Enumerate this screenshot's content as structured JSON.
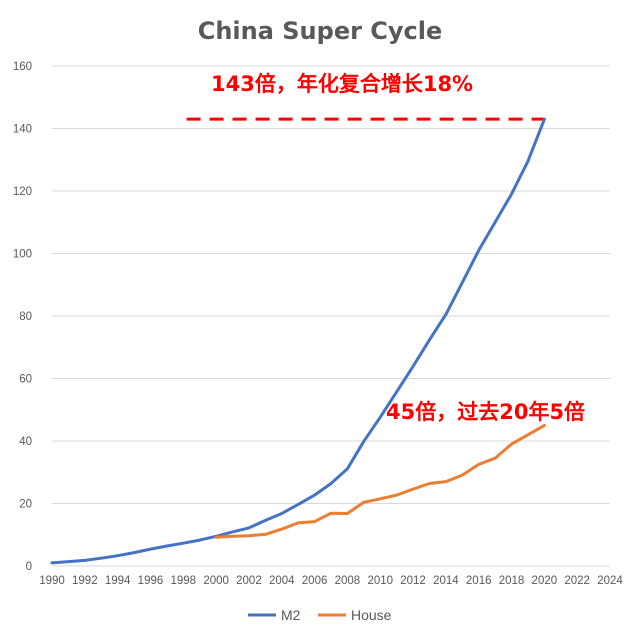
{
  "chart_data": {
    "type": "line",
    "title": "China Super Cycle",
    "xlabel": "",
    "ylabel": "",
    "ylim": [
      0,
      160
    ],
    "xlim": [
      1990,
      2024
    ],
    "y_ticks": [
      "0",
      "20",
      "40",
      "60",
      "80",
      "100",
      "120",
      "140",
      "160"
    ],
    "x_ticks": [
      "1990",
      "1992",
      "1994",
      "1996",
      "1998",
      "2000",
      "2002",
      "2004",
      "2006",
      "2008",
      "2010",
      "2012",
      "2014",
      "2016",
      "2018",
      "2020",
      "2022",
      "2024"
    ],
    "grid": "horizontal",
    "legend_position": "bottom",
    "series": [
      {
        "name": "M2",
        "color": "#4472c4",
        "x": [
          1990,
          1991,
          1992,
          1993,
          1994,
          1995,
          1996,
          1997,
          1998,
          1999,
          2000,
          2001,
          2002,
          2003,
          2004,
          2005,
          2006,
          2007,
          2008,
          2009,
          2010,
          2011,
          2012,
          2013,
          2014,
          2015,
          2016,
          2017,
          2018,
          2019,
          2020
        ],
        "values": [
          1.0,
          1.4,
          1.8,
          2.5,
          3.3,
          4.3,
          5.4,
          6.4,
          7.3,
          8.3,
          9.5,
          10.9,
          12.2,
          14.6,
          16.8,
          19.7,
          22.7,
          26.4,
          31.1,
          39.9,
          47.6,
          55.7,
          63.9,
          72.4,
          80.5,
          90.7,
          101.0,
          110.0,
          119.0,
          129.5,
          143.0
        ]
      },
      {
        "name": "House",
        "color": "#ed7d31",
        "x": [
          2000,
          2001,
          2002,
          2003,
          2004,
          2005,
          2006,
          2007,
          2008,
          2009,
          2010,
          2011,
          2012,
          2013,
          2014,
          2015,
          2016,
          2017,
          2018,
          2019,
          2020
        ],
        "values": [
          9.2,
          9.5,
          9.7,
          10.1,
          11.8,
          13.8,
          14.2,
          16.9,
          16.8,
          20.4,
          21.5,
          22.7,
          24.6,
          26.4,
          27.0,
          29.1,
          32.5,
          34.5,
          39.0,
          42.0,
          45.0
        ]
      }
    ],
    "annotations": [
      {
        "text": "143倍，年化复合增长18%",
        "color": "#ff0000"
      },
      {
        "text": "45倍，过去20年5倍",
        "color": "#ff0000"
      }
    ],
    "reference_line": {
      "y": 143,
      "x_start": 1998.2,
      "x_end": 2020.0,
      "color": "#ff0000",
      "style": "dashed"
    }
  }
}
